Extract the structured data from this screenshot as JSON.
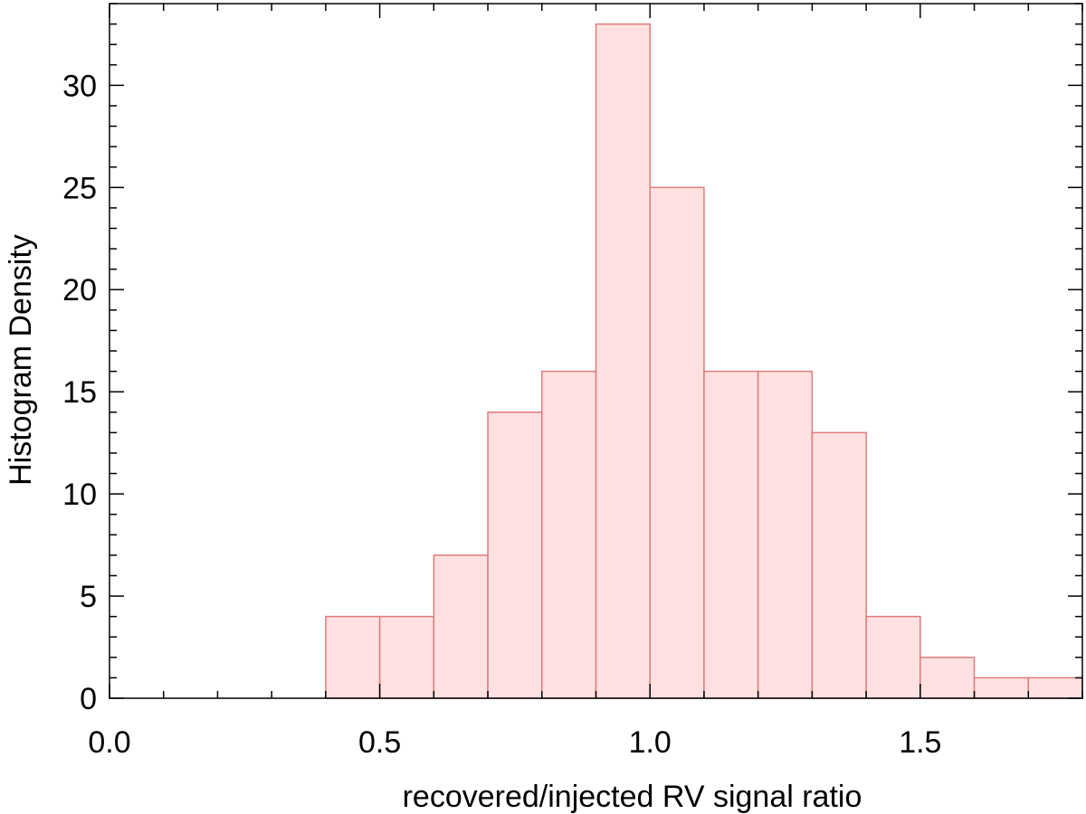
{
  "chart_data": {
    "type": "bar",
    "title": "",
    "xlabel": "recovered/injected RV signal ratio",
    "ylabel": "Histogram Density",
    "xlim": [
      0.0,
      1.8
    ],
    "ylim": [
      0,
      34
    ],
    "bin_width": 0.1,
    "bins": [
      {
        "x0": 0.4,
        "x1": 0.5,
        "value": 4
      },
      {
        "x0": 0.5,
        "x1": 0.6,
        "value": 4
      },
      {
        "x0": 0.6,
        "x1": 0.7,
        "value": 7
      },
      {
        "x0": 0.7,
        "x1": 0.8,
        "value": 14
      },
      {
        "x0": 0.8,
        "x1": 0.9,
        "value": 16
      },
      {
        "x0": 0.9,
        "x1": 1.0,
        "value": 33
      },
      {
        "x0": 1.0,
        "x1": 1.1,
        "value": 25
      },
      {
        "x0": 1.1,
        "x1": 1.2,
        "value": 16
      },
      {
        "x0": 1.2,
        "x1": 1.3,
        "value": 16
      },
      {
        "x0": 1.3,
        "x1": 1.4,
        "value": 13
      },
      {
        "x0": 1.4,
        "x1": 1.5,
        "value": 4
      },
      {
        "x0": 1.5,
        "x1": 1.6,
        "value": 2
      },
      {
        "x0": 1.6,
        "x1": 1.7,
        "value": 1
      },
      {
        "x0": 1.7,
        "x1": 1.8,
        "value": 1
      }
    ],
    "x_major_ticks": [
      0.0,
      0.5,
      1.0,
      1.5
    ],
    "x_tick_labels": [
      "0.0",
      "0.5",
      "1.0",
      "1.5"
    ],
    "x_minor_step": 0.1,
    "y_major_ticks": [
      0,
      5,
      10,
      15,
      20,
      25,
      30
    ],
    "y_tick_labels": [
      "0",
      "5",
      "10",
      "15",
      "20",
      "25",
      "30"
    ],
    "y_minor_step": 1,
    "grid": false,
    "legend": "none",
    "colors": {
      "bar_fill": "#ffe1e1",
      "bar_edge": "#e07b7b",
      "axis": "#000000"
    }
  }
}
